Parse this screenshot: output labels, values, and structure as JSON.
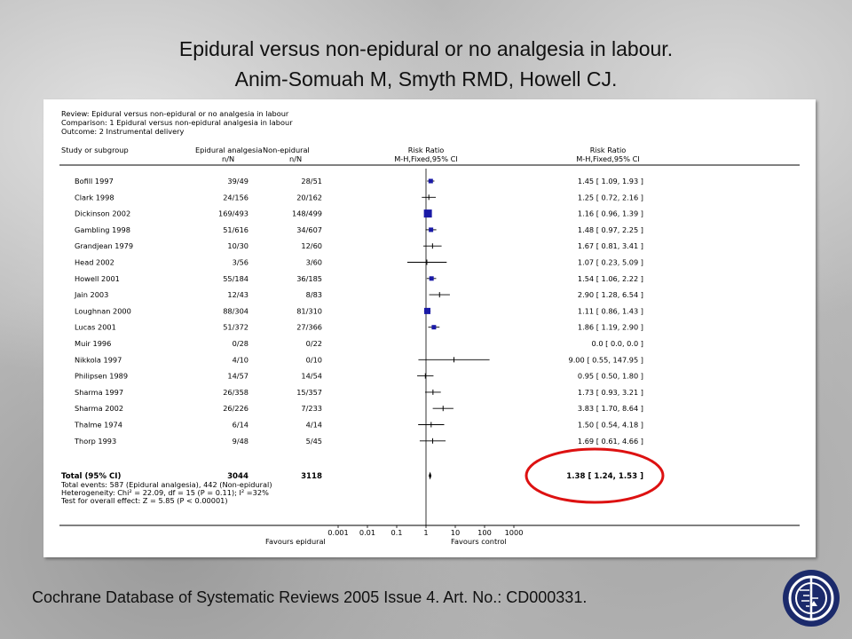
{
  "slide": {
    "title_line1": "Epidural versus non-epidural or no analgesia in labour.",
    "title_line2": "Anim-Somuah M, Smyth RMD, Howell CJ.",
    "footer": "Cochrane Database of Systematic Reviews 2005 Issue 4. Art. No.: CD000331."
  },
  "colors": {
    "marker": "#1a1aa6",
    "highlight_ring": "#dd1111",
    "text": "#000000"
  },
  "chart_data": {
    "type": "forest",
    "header": {
      "review": "Review:  Epidural versus non-epidural or no analgesia in labour",
      "comparison": "Comparison:  1 Epidural versus non-epidural analgesia in labour",
      "outcome": "Outcome:  2 Instrumental delivery"
    },
    "columns": {
      "study": "Study or subgroup",
      "epi_title": "Epidural analgesia",
      "epi_sub": "n/N",
      "non_title": "Non-epidural",
      "non_sub": "n/N",
      "rr_mid_title": "Risk Ratio",
      "rr_mid_sub": "M-H,Fixed,95% CI",
      "rr_right_title": "Risk Ratio",
      "rr_right_sub": "M-H,Fixed,95% CI"
    },
    "x_scale": "log",
    "xlim": [
      0.001,
      1000
    ],
    "ticks": [
      0.001,
      0.01,
      0.1,
      1,
      10,
      100,
      1000
    ],
    "tick_labels": [
      "0.001",
      "0.01",
      "0.1",
      "1",
      "10",
      "100",
      "1000"
    ],
    "favours_left": "Favours epidural",
    "favours_right": "Favours control",
    "studies": [
      {
        "name": "Bofill 1997",
        "epi": "39/49",
        "non": "28/51",
        "rr": 1.45,
        "lo": 1.09,
        "hi": 1.93,
        "text": "1.45 [ 1.09, 1.93 ]",
        "weight": 2
      },
      {
        "name": "Clark 1998",
        "epi": "24/156",
        "non": "20/162",
        "rr": 1.25,
        "lo": 0.72,
        "hi": 2.16,
        "text": "1.25 [ 0.72, 2.16 ]",
        "weight": 0
      },
      {
        "name": "Dickinson 2002",
        "epi": "169/493",
        "non": "148/499",
        "rr": 1.16,
        "lo": 0.96,
        "hi": 1.39,
        "text": "1.16 [ 0.96, 1.39 ]",
        "weight": 4
      },
      {
        "name": "Gambling 1998",
        "epi": "51/616",
        "non": "34/607",
        "rr": 1.48,
        "lo": 0.97,
        "hi": 2.25,
        "text": "1.48 [ 0.97, 2.25 ]",
        "weight": 2
      },
      {
        "name": "Grandjean 1979",
        "epi": "10/30",
        "non": "12/60",
        "rr": 1.67,
        "lo": 0.81,
        "hi": 3.41,
        "text": "1.67 [ 0.81, 3.41 ]",
        "weight": 0
      },
      {
        "name": "Head 2002",
        "epi": "3/56",
        "non": "3/60",
        "rr": 1.07,
        "lo": 0.23,
        "hi": 5.09,
        "text": "1.07 [ 0.23, 5.09 ]",
        "weight": 0
      },
      {
        "name": "Howell 2001",
        "epi": "55/184",
        "non": "36/185",
        "rr": 1.54,
        "lo": 1.06,
        "hi": 2.22,
        "text": "1.54 [ 1.06, 2.22 ]",
        "weight": 2
      },
      {
        "name": "Jain 2003",
        "epi": "12/43",
        "non": "8/83",
        "rr": 2.9,
        "lo": 1.28,
        "hi": 6.54,
        "text": "2.90 [ 1.28, 6.54 ]",
        "weight": 0
      },
      {
        "name": "Loughnan 2000",
        "epi": "88/304",
        "non": "81/310",
        "rr": 1.11,
        "lo": 0.86,
        "hi": 1.43,
        "text": "1.11 [ 0.86, 1.43 ]",
        "weight": 3
      },
      {
        "name": "Lucas 2001",
        "epi": "51/372",
        "non": "27/366",
        "rr": 1.86,
        "lo": 1.19,
        "hi": 2.9,
        "text": "1.86 [ 1.19, 2.90 ]",
        "weight": 2
      },
      {
        "name": "Muir 1996",
        "epi": "0/28",
        "non": "0/22",
        "rr": null,
        "lo": null,
        "hi": null,
        "text": "0.0 [ 0.0, 0.0 ]",
        "weight": 0
      },
      {
        "name": "Nikkola 1997",
        "epi": "4/10",
        "non": "0/10",
        "rr": 9.0,
        "lo": 0.55,
        "hi": 147.95,
        "text": "9.00 [ 0.55, 147.95 ]",
        "weight": 0
      },
      {
        "name": "Philipsen 1989",
        "epi": "14/57",
        "non": "14/54",
        "rr": 0.95,
        "lo": 0.5,
        "hi": 1.8,
        "text": "0.95 [ 0.50, 1.80 ]",
        "weight": 0
      },
      {
        "name": "Sharma 1997",
        "epi": "26/358",
        "non": "15/357",
        "rr": 1.73,
        "lo": 0.93,
        "hi": 3.21,
        "text": "1.73 [ 0.93, 3.21 ]",
        "weight": 0
      },
      {
        "name": "Sharma 2002",
        "epi": "26/226",
        "non": "7/233",
        "rr": 3.83,
        "lo": 1.7,
        "hi": 8.64,
        "text": "3.83 [ 1.70, 8.64 ]",
        "weight": 0
      },
      {
        "name": "Thalme 1974",
        "epi": "6/14",
        "non": "4/14",
        "rr": 1.5,
        "lo": 0.54,
        "hi": 4.18,
        "text": "1.50 [ 0.54, 4.18 ]",
        "weight": 0
      },
      {
        "name": "Thorp 1993",
        "epi": "9/48",
        "non": "5/45",
        "rr": 1.69,
        "lo": 0.61,
        "hi": 4.66,
        "text": "1.69 [ 0.61, 4.66 ]",
        "weight": 0
      }
    ],
    "total": {
      "label": "Total (95% CI)",
      "epi": "3044",
      "non": "3118",
      "rr": 1.38,
      "lo": 1.24,
      "hi": 1.53,
      "text": "1.38  [  1.24, 1.53  ]",
      "notes": [
        "Total events: 587 (Epidural analgesia), 442 (Non-epidural)",
        "Heterogeneity: Chi² = 22.09, df = 15 (P = 0.11); I² =32%",
        "Test for overall effect: Z = 5.85 (P < 0.00001)"
      ]
    }
  }
}
